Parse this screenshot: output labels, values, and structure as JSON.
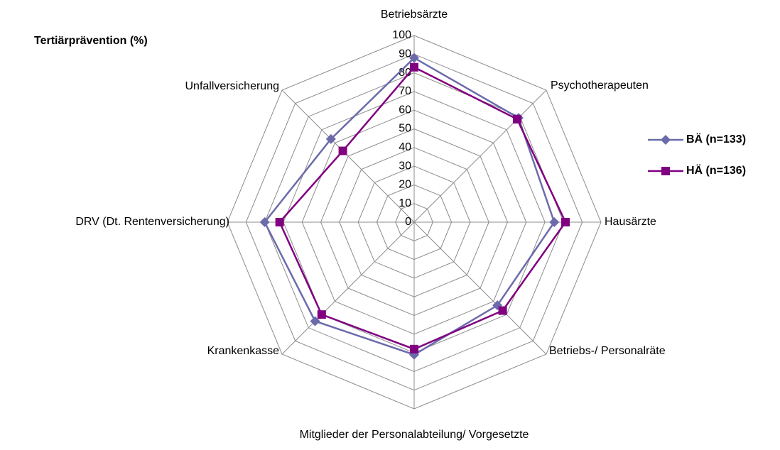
{
  "chart_data": {
    "type": "radar",
    "title": "Tertiärprävention (%)",
    "categories": [
      "Betriebsärzte",
      "Psychotherapeuten",
      "Hausärzte",
      "Betriebs-/ Personalräte",
      "Mitglieder der Personalabteilung/ Vorgesetzte",
      "Krankenkasse",
      "DRV (Dt. Rentenversicherung)",
      "Unfallversicherung"
    ],
    "series": [
      {
        "name": "BÄ (n=133)",
        "color": "#6b6bab",
        "marker": "diamond",
        "values": [
          88,
          79,
          75,
          63,
          71,
          75,
          80,
          63
        ]
      },
      {
        "name": "HÄ (n=136)",
        "color": "#800080",
        "marker": "square",
        "values": [
          83,
          78,
          81,
          67,
          68,
          70,
          72,
          54
        ]
      }
    ],
    "ylim": [
      0,
      100
    ],
    "yticks": [
      0,
      10,
      20,
      30,
      40,
      50,
      60,
      70,
      80,
      90,
      100
    ],
    "grid": true,
    "legend": "right"
  }
}
